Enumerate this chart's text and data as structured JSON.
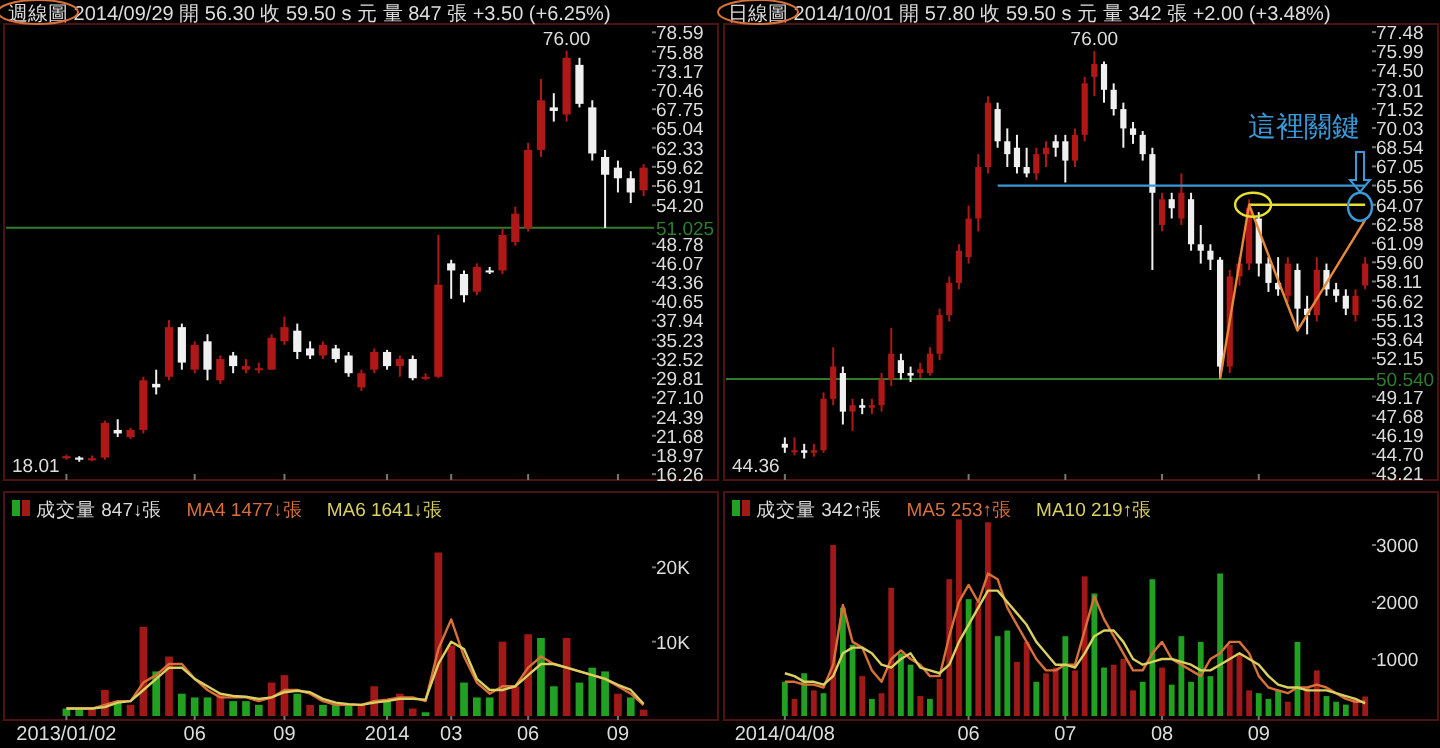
{
  "chart_data": [
    {
      "type": "candlestick",
      "title": "週線圖 2014/09/29 開 56.30 收 59.50 s 元 量 847 張 +3.50 (+6.25%)",
      "tick_labels": "y",
      "colors": [
        "#b01818",
        "#f0f0f0",
        "#b01818",
        "#b01818",
        "#f0f0f0",
        "#b01818",
        "#b01818",
        "#f0f0f0",
        "#b01818",
        "#f0f0f0",
        "#b01818",
        "#f0f0f0",
        "#b01818",
        "#f0f0f0",
        "#b01818",
        "#b01818",
        "#b01818",
        "#b01818",
        "#f0f0f0",
        "#f0f0f0",
        "#b01818",
        "#f0f0f0",
        "#f0f0f0",
        "#b01818",
        "#b01818",
        "#f0f0f0",
        "#b01818",
        "#f0f0f0",
        "#b01818",
        "#b01818",
        "#f0f0f0",
        "#f0f0f0",
        "#b01818",
        "#f0f0f0",
        "#b01818",
        "#b01818",
        "#b01818",
        "#b01818",
        "#f0f0f0",
        "#b01818",
        "#f0f0f0",
        "#f0f0f0",
        "#f0f0f0",
        "#f0f0f0",
        "#f0f0f0",
        "#b01818"
      ],
      "categories": [
        "2013/01/02",
        null,
        null,
        null,
        null,
        null,
        null,
        null,
        null,
        null,
        "06",
        null,
        null,
        null,
        null,
        null,
        null,
        "09",
        null,
        null,
        null,
        null,
        null,
        null,
        null,
        "2014",
        null,
        null,
        null,
        null,
        "03",
        null,
        null,
        null,
        null,
        null,
        "06",
        null,
        null,
        null,
        null,
        null,
        null,
        "09",
        null,
        null
      ],
      "ohlc": [
        [
          18.5,
          19.0,
          18.3,
          18.8
        ],
        [
          18.6,
          18.8,
          18.01,
          18.3
        ],
        [
          18.3,
          18.9,
          18.1,
          18.5
        ],
        [
          18.6,
          23.8,
          18.3,
          23.5
        ],
        [
          22.5,
          24,
          21.5,
          22
        ],
        [
          21.5,
          22.8,
          21.2,
          22.5
        ],
        [
          22.5,
          30,
          22,
          29.5
        ],
        [
          29,
          31,
          27.5,
          28.5
        ],
        [
          30,
          38,
          29.5,
          37
        ],
        [
          37,
          37.5,
          31,
          32
        ],
        [
          31,
          35,
          30.5,
          34.5
        ],
        [
          35,
          36,
          29.5,
          31
        ],
        [
          29.5,
          33,
          29,
          32.5
        ],
        [
          33,
          33.5,
          30.5,
          31.5
        ],
        [
          31,
          32.5,
          30.5,
          31.5
        ],
        [
          31,
          32,
          30.5,
          31.2
        ],
        [
          31,
          36,
          31,
          35.5
        ],
        [
          35,
          38.5,
          34.5,
          37
        ],
        [
          36.5,
          37.5,
          32.5,
          33.5
        ],
        [
          34,
          35,
          32.5,
          33
        ],
        [
          33,
          35,
          32.5,
          34.5
        ],
        [
          34,
          34.5,
          32,
          32.5
        ],
        [
          33,
          33.5,
          30,
          30.5
        ],
        [
          28.5,
          31,
          28,
          30.5
        ],
        [
          31,
          34,
          30.5,
          33.5
        ],
        [
          33.5,
          33.8,
          31,
          31.5
        ],
        [
          31.5,
          33,
          30,
          32.5
        ],
        [
          32.5,
          33,
          29.5,
          29.8
        ],
        [
          29.8,
          30.5,
          29.5,
          30
        ],
        [
          30,
          50,
          29.8,
          43
        ],
        [
          46,
          46.5,
          41,
          45
        ],
        [
          44.5,
          45,
          40.5,
          41.5
        ],
        [
          42,
          46,
          41.5,
          45.5
        ],
        [
          45,
          45.5,
          44.5,
          44.8
        ],
        [
          45,
          51,
          44.5,
          50
        ],
        [
          49,
          54,
          48.5,
          53
        ],
        [
          51,
          63,
          50.5,
          62
        ],
        [
          62,
          72,
          61,
          69
        ],
        [
          68,
          70,
          66,
          67.5
        ],
        [
          67,
          76,
          66,
          75
        ],
        [
          74,
          75,
          68,
          68.5
        ],
        [
          68,
          69,
          60.5,
          61.5
        ],
        [
          61,
          62,
          51,
          58.5
        ],
        [
          59.5,
          60.5,
          56,
          58
        ],
        [
          58,
          59,
          54.5,
          56
        ],
        [
          56.3,
          60,
          55.5,
          59.5
        ]
      ],
      "ylim": [
        16.0,
        79.2
      ],
      "yticks": [
        78.59,
        75.88,
        73.17,
        70.46,
        67.75,
        65.04,
        62.33,
        59.62,
        56.91,
        {
          "value": 54.2,
          "label": "54.20"
        },
        48.78,
        46.07,
        43.36,
        40.65,
        37.94,
        35.23,
        32.52,
        29.81,
        {
          "value": 27.1,
          "label": "27.10"
        },
        24.39,
        21.68,
        18.97,
        16.26
      ],
      "ref_lines": [
        {
          "axis": "y",
          "value": 51.025,
          "label": "51.025",
          "color": "#2e7d2e"
        }
      ],
      "annotations": [
        {
          "text": "76.00",
          "y": 76
        },
        "18.01"
      ]
    },
    {
      "type": "bar",
      "legend": "top left",
      "ylim": [
        0,
        29600
      ],
      "yticks": [
        {
          "value": 10000,
          "label": "10K"
        },
        {
          "value": 20000,
          "label": "20K"
        }
      ],
      "categories": [
        "2013/01/02",
        null,
        null,
        null,
        null,
        null,
        null,
        null,
        null,
        null,
        "06",
        null,
        null,
        null,
        null,
        null,
        null,
        "09",
        null,
        null,
        null,
        null,
        null,
        null,
        null,
        "2014",
        null,
        null,
        null,
        null,
        "03",
        null,
        null,
        null,
        null,
        null,
        "06",
        null,
        null,
        null,
        null,
        null,
        null,
        "09",
        null,
        null
      ],
      "series": [
        {
          "name": "成交量 847↓張",
          "type": "bar",
          "values": [
            1000,
            1000,
            1000,
            3500,
            2000,
            1500,
            12000,
            6000,
            8000,
            3000,
            2500,
            2500,
            3000,
            2000,
            2000,
            1500,
            4500,
            5500,
            3000,
            1500,
            1500,
            1500,
            1500,
            1500,
            4000,
            2000,
            3000,
            1000,
            500,
            22000,
            9500,
            4500,
            2500,
            2500,
            10000,
            4000,
            11000,
            10500,
            4000,
            10500,
            4500,
            6500,
            6000,
            3000,
            2500,
            847
          ],
          "colors": [
            "#22a022",
            "#22a022",
            "#a01818",
            "#a01818",
            "#22a022",
            "#a01818",
            "#a01818",
            "#22a022",
            "#a01818",
            "#22a022",
            "#22a022",
            "#22a022",
            "#a01818",
            "#22a022",
            "#22a022",
            "#22a022",
            "#a01818",
            "#a01818",
            "#22a022",
            "#a01818",
            "#22a022",
            "#22a022",
            "#22a022",
            "#a01818",
            "#a01818",
            "#22a022",
            "#a01818",
            "#a01818",
            "#22a022",
            "#a01818",
            "#a01818",
            "#22a022",
            "#22a022",
            "#22a022",
            "#a01818",
            "#a01818",
            "#a01818",
            "#22a022",
            "#22a022",
            "#a01818",
            "#22a022",
            "#22a022",
            "#22a022",
            "#a01818",
            "#22a022",
            "#a01818"
          ]
        },
        {
          "name": "MA4 1477↓張",
          "type": "line",
          "color": "#d8703a",
          "values": [
            1000,
            1000,
            1000,
            1500,
            2000,
            2000,
            4500,
            5500,
            7000,
            7000,
            5000,
            3500,
            2500,
            2500,
            2500,
            2000,
            2500,
            3500,
            3500,
            3000,
            2000,
            1500,
            1500,
            1500,
            2000,
            2200,
            2500,
            2500,
            2000,
            9000,
            13000,
            8000,
            4500,
            3000,
            4000,
            4000,
            6500,
            8000,
            7000,
            6500,
            6000,
            5500,
            5000,
            4000,
            3000,
            1477
          ]
        },
        {
          "name": "MA6 1641↓張",
          "type": "line",
          "color": "#d8d060",
          "values": [
            1000,
            1000,
            1000,
            1200,
            1800,
            2000,
            3500,
            5000,
            6500,
            6500,
            5000,
            4000,
            3000,
            2700,
            2600,
            2300,
            2500,
            3200,
            3400,
            3200,
            2300,
            1800,
            1600,
            1500,
            1800,
            2000,
            2300,
            2300,
            2200,
            7000,
            10000,
            9000,
            5000,
            3500,
            3500,
            4000,
            5500,
            7000,
            7000,
            6500,
            6000,
            5500,
            5000,
            4200,
            3500,
            1641
          ]
        }
      ]
    },
    {
      "type": "candlestick",
      "title": "日線圖 2014/10/01 開 57.80 收 59.50 s 元 量 342 張 +2.00 (+3.48%)",
      "tick_labels": "y",
      "colors": [
        "#f0f0f0",
        "#b01818",
        "#f0f0f0",
        "#b01818",
        "#b01818",
        "#b01818",
        "#f0f0f0",
        "#b01818",
        "#f0f0f0",
        "#b01818",
        "#b01818",
        "#b01818",
        "#f0f0f0",
        "#f0f0f0",
        "#b01818",
        "#b01818",
        "#b01818",
        "#b01818",
        "#b01818",
        "#b01818",
        "#b01818",
        "#b01818",
        "#f0f0f0",
        "#f0f0f0",
        "#f0f0f0",
        "#f0f0f0",
        "#b01818",
        "#b01818",
        "#f0f0f0",
        "#f0f0f0",
        "#b01818",
        "#b01818",
        "#b01818",
        "#f0f0f0",
        "#f0f0f0",
        "#f0f0f0",
        "#f0f0f0",
        "#f0f0f0",
        "#f0f0f0",
        "#b01818",
        "#f0f0f0",
        "#b01818",
        "#f0f0f0",
        "#f0f0f0",
        "#f0f0f0",
        "#f0f0f0",
        "#b01818",
        "#b01818",
        "#b01818",
        "#f0f0f0",
        "#f0f0f0",
        "#f0f0f0",
        "#b01818",
        "#f0f0f0",
        "#f0f0f0",
        "#b01818",
        "#f0f0f0",
        "#f0f0f0",
        "#f0f0f0",
        "#b01818",
        "#b01818"
      ],
      "categories": [
        "2014/04/08",
        null,
        null,
        null,
        null,
        null,
        null,
        null,
        null,
        null,
        null,
        null,
        null,
        null,
        null,
        null,
        null,
        null,
        null,
        "06",
        null,
        null,
        null,
        null,
        null,
        null,
        null,
        null,
        null,
        "07",
        null,
        null,
        null,
        null,
        null,
        null,
        null,
        null,
        null,
        "08",
        null,
        null,
        null,
        null,
        null,
        null,
        null,
        null,
        null,
        "09",
        null,
        null,
        null,
        null,
        null,
        null,
        null,
        null,
        null,
        null,
        null
      ],
      "ohlc": [
        [
          45.5,
          46,
          44.8,
          45.2
        ],
        [
          45,
          46,
          44.6,
          45
        ],
        [
          45,
          45.5,
          44.36,
          44.8
        ],
        [
          44.8,
          45.5,
          44.5,
          45
        ],
        [
          45,
          49.5,
          44.8,
          49
        ],
        [
          49,
          53,
          48.5,
          51.5
        ],
        [
          51,
          51.5,
          47,
          48
        ],
        [
          48,
          49,
          46.5,
          48.5
        ],
        [
          48.5,
          49,
          47.8,
          48.3
        ],
        [
          48.3,
          49,
          47.8,
          48.5
        ],
        [
          48.5,
          51,
          48,
          50.5
        ],
        [
          50.5,
          54.5,
          50,
          52.5
        ],
        [
          52,
          52.5,
          50.5,
          51
        ],
        [
          51,
          51.5,
          50.3,
          50.8
        ],
        [
          51,
          51.8,
          50.6,
          51.3
        ],
        [
          51,
          53,
          50.8,
          52.5
        ],
        [
          52.5,
          56,
          52,
          55.5
        ],
        [
          55.5,
          58.5,
          55,
          58
        ],
        [
          58,
          61,
          57.5,
          60.5
        ],
        [
          60,
          64,
          59.5,
          63
        ],
        [
          63,
          68,
          62,
          67
        ],
        [
          67,
          72.5,
          66.5,
          72
        ],
        [
          71.5,
          72,
          68.5,
          69
        ],
        [
          69,
          70,
          67,
          68
        ],
        [
          68.5,
          69.5,
          66.5,
          67
        ],
        [
          67,
          68.5,
          66.2,
          66.5
        ],
        [
          66.5,
          68.5,
          66,
          68
        ],
        [
          68,
          69,
          67,
          68.5
        ],
        [
          69,
          69.5,
          67.8,
          68.5
        ],
        [
          69,
          69.5,
          65.8,
          67.5
        ],
        [
          67.5,
          70,
          67,
          69.5
        ],
        [
          69.5,
          74,
          69,
          73.5
        ],
        [
          74,
          76,
          72.5,
          75
        ],
        [
          75,
          75.2,
          72,
          73
        ],
        [
          73,
          73.5,
          71,
          71.5
        ],
        [
          71.5,
          72,
          68.5,
          70
        ],
        [
          70,
          70.5,
          68.8,
          69.5
        ],
        [
          69.5,
          69.8,
          67.5,
          68
        ],
        [
          68,
          68.5,
          59,
          65
        ],
        [
          62.5,
          65,
          62,
          64.5
        ],
        [
          64.5,
          65,
          63,
          63.8
        ],
        [
          63,
          66.5,
          62.5,
          65
        ],
        [
          64.5,
          65,
          60.5,
          61
        ],
        [
          61,
          62.5,
          59.5,
          60.5
        ],
        [
          60.5,
          61,
          59,
          59.8
        ],
        [
          59.8,
          60,
          50.54,
          51.5
        ],
        [
          51.5,
          59,
          51,
          58.5
        ],
        [
          58.5,
          60,
          57.8,
          59.5
        ],
        [
          59.5,
          64.5,
          59,
          63.8
        ],
        [
          63,
          63.5,
          58.5,
          59.5
        ],
        [
          59.5,
          60,
          57.3,
          58
        ],
        [
          58,
          60,
          57,
          57.5
        ],
        [
          57,
          60,
          56.5,
          59.5
        ],
        [
          59,
          59.5,
          54.5,
          56
        ],
        [
          56,
          57,
          54,
          55.5
        ],
        [
          55.5,
          60,
          55,
          59
        ],
        [
          59,
          59.5,
          57,
          57.5
        ],
        [
          57.5,
          58,
          56.5,
          57
        ],
        [
          57,
          57.5,
          55.5,
          56
        ],
        [
          55.5,
          57.5,
          55,
          57
        ],
        [
          57.8,
          60,
          57.5,
          59.5
        ]
      ],
      "series": [
        {
          "type": "line",
          "color": "#3a9ad9",
          "values": [
            null,
            null,
            null,
            null,
            null,
            null,
            null,
            null,
            null,
            null,
            null,
            null,
            null,
            null,
            null,
            null,
            null,
            null,
            null,
            null,
            null,
            null,
            65.56,
            65.56,
            65.56,
            65.56,
            65.56,
            65.56,
            65.56,
            65.56,
            65.56,
            65.56,
            65.56,
            65.56,
            65.56,
            65.56,
            65.56,
            65.56,
            65.56,
            65.56,
            65.56,
            65.56,
            65.56,
            65.56,
            65.56,
            65.56,
            65.56,
            65.56,
            65.56,
            65.56,
            65.56,
            65.56,
            65.56,
            65.56,
            65.56,
            65.56,
            65.56,
            65.56,
            65.56,
            65.56,
            65.56
          ]
        },
        {
          "type": "line",
          "color": "#e8e030",
          "values": [
            null,
            null,
            null,
            null,
            null,
            null,
            null,
            null,
            null,
            null,
            null,
            null,
            null,
            null,
            null,
            null,
            null,
            null,
            null,
            null,
            null,
            null,
            null,
            null,
            null,
            null,
            null,
            null,
            null,
            null,
            null,
            null,
            null,
            null,
            null,
            null,
            null,
            null,
            null,
            null,
            null,
            null,
            null,
            null,
            null,
            null,
            null,
            null,
            64.07,
            64.07,
            64.07,
            64.07,
            64.07,
            64.07,
            64.07,
            64.07,
            64.07,
            64.07,
            64.07,
            64.07,
            64.07
          ]
        },
        {
          "type": "line",
          "color": "#e8883a",
          "values": [
            null,
            null,
            null,
            null,
            null,
            null,
            null,
            null,
            null,
            null,
            null,
            null,
            null,
            null,
            null,
            null,
            null,
            null,
            null,
            null,
            null,
            null,
            null,
            null,
            null,
            null,
            null,
            null,
            null,
            null,
            null,
            null,
            null,
            null,
            null,
            null,
            null,
            null,
            null,
            null,
            null,
            null,
            null,
            null,
            null,
            50.54,
            null,
            null,
            64.07,
            null,
            null,
            null,
            null,
            54.3,
            null,
            null,
            null,
            null,
            null,
            null,
            62.9
          ]
        }
      ],
      "ylim": [
        43.0,
        77.8
      ],
      "yticks": [
        77.48,
        75.99,
        {
          "value": 74.5,
          "label": "74.50"
        },
        73.01,
        71.52,
        70.03,
        68.54,
        67.05,
        65.56,
        64.07,
        62.58,
        61.09,
        {
          "value": 59.6,
          "label": "59.60"
        },
        58.11,
        56.62,
        55.13,
        53.64,
        52.15,
        49.17,
        47.68,
        46.19,
        {
          "value": 44.7,
          "label": "44.70"
        },
        43.21
      ],
      "ref_lines": [
        {
          "axis": "y",
          "value": 50.54,
          "label": "50.540",
          "color": "#2e7d2e"
        }
      ],
      "annotations": [
        {
          "text": "76.00",
          "y": 76
        },
        "44.36",
        "這裡關鍵"
      ]
    },
    {
      "type": "bar",
      "legend": "top left",
      "ylim": [
        0,
        3860
      ],
      "yticks": [
        1000,
        2000,
        3000
      ],
      "categories": [
        "2014/04/08",
        null,
        null,
        null,
        null,
        null,
        null,
        null,
        null,
        null,
        null,
        null,
        null,
        null,
        null,
        null,
        null,
        null,
        null,
        "06",
        null,
        null,
        null,
        null,
        null,
        null,
        null,
        null,
        null,
        "07",
        null,
        null,
        null,
        null,
        null,
        null,
        null,
        null,
        null,
        "08",
        null,
        null,
        null,
        null,
        null,
        null,
        null,
        null,
        null,
        "09",
        null,
        null,
        null,
        null,
        null,
        null,
        null,
        null,
        null,
        null,
        null
      ],
      "series": [
        {
          "name": "成交量 342↑張",
          "type": "bar",
          "values": [
            600,
            300,
            750,
            450,
            400,
            3000,
            1900,
            1250,
            700,
            300,
            400,
            2250,
            1100,
            900,
            350,
            300,
            650,
            2400,
            3450,
            2050,
            2000,
            3400,
            1400,
            1500,
            950,
            1300,
            600,
            750,
            850,
            1400,
            800,
            2450,
            2150,
            850,
            900,
            1000,
            450,
            600,
            2400,
            850,
            550,
            1400,
            600,
            1300,
            700,
            2500,
            1250,
            1100,
            450,
            400,
            300,
            450,
            250,
            1300,
            500,
            800,
            350,
            250,
            200,
            300,
            342
          ],
          "colors": [
            "#22a022",
            "#a01818",
            "#22a022",
            "#a01818",
            "#22a022",
            "#a01818",
            "#22a022",
            "#22a022",
            "#a01818",
            "#22a022",
            "#a01818",
            "#a01818",
            "#22a022",
            "#22a022",
            "#a01818",
            "#22a022",
            "#a01818",
            "#a01818",
            "#a01818",
            "#22a022",
            "#a01818",
            "#a01818",
            "#22a022",
            "#22a022",
            "#a01818",
            "#a01818",
            "#22a022",
            "#a01818",
            "#a01818",
            "#22a022",
            "#a01818",
            "#a01818",
            "#22a022",
            "#22a022",
            "#a01818",
            "#a01818",
            "#a01818",
            "#22a022",
            "#22a022",
            "#a01818",
            "#22a022",
            "#22a022",
            "#22a022",
            "#22a022",
            "#22a022",
            "#22a022",
            "#a01818",
            "#a01818",
            "#a01818",
            "#22a022",
            "#22a022",
            "#22a022",
            "#a01818",
            "#22a022",
            "#a01818",
            "#a01818",
            "#22a022",
            "#22a022",
            "#22a022",
            "#a01818",
            "#a01818"
          ]
        },
        {
          "name": "MA5 253↑張",
          "type": "line",
          "color": "#d8703a",
          "values": [
            600,
            600,
            550,
            550,
            500,
            900,
            1950,
            1300,
            1200,
            800,
            600,
            1000,
            1150,
            1000,
            900,
            700,
            700,
            1400,
            2000,
            2300,
            2000,
            2500,
            2400,
            1900,
            1600,
            1300,
            1000,
            800,
            800,
            900,
            900,
            1500,
            2100,
            1700,
            1400,
            1100,
            800,
            800,
            1100,
            1300,
            1000,
            900,
            800,
            700,
            1000,
            1100,
            1300,
            1300,
            1100,
            700,
            500,
            450,
            400,
            500,
            500,
            550,
            500,
            400,
            300,
            250,
            253
          ]
        },
        {
          "name": "MA10 219↑張",
          "type": "line",
          "color": "#d8d060",
          "values": [
            750,
            700,
            600,
            600,
            550,
            700,
            1100,
            1200,
            1200,
            1100,
            900,
            850,
            1000,
            1100,
            850,
            800,
            750,
            900,
            1300,
            1600,
            1900,
            2200,
            2200,
            2000,
            1800,
            1600,
            1300,
            1100,
            900,
            900,
            850,
            1100,
            1400,
            1500,
            1500,
            1300,
            1000,
            900,
            950,
            1000,
            1000,
            950,
            900,
            800,
            800,
            900,
            1000,
            1100,
            1000,
            900,
            700,
            550,
            500,
            500,
            450,
            450,
            450,
            400,
            350,
            300,
            219
          ]
        }
      ]
    }
  ]
}
